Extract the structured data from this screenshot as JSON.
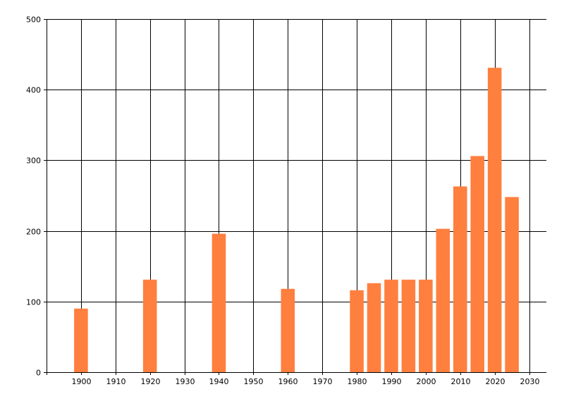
{
  "chart_data": {
    "type": "bar",
    "x": [
      1900,
      1920,
      1940,
      1960,
      1980,
      1985,
      1990,
      1995,
      2000,
      2005,
      2010,
      2015,
      2020,
      2025
    ],
    "values": [
      90,
      131,
      196,
      118,
      116,
      126,
      131,
      131,
      131,
      203,
      263,
      306,
      431,
      248
    ],
    "xlim": [
      1890,
      2035
    ],
    "ylim": [
      0,
      500
    ],
    "x_ticks": [
      "1900",
      "1910",
      "1920",
      "1930",
      "1940",
      "1950",
      "1960",
      "1970",
      "1980",
      "1990",
      "2000",
      "2010",
      "2020",
      "2030"
    ],
    "y_ticks": [
      "0",
      "100",
      "200",
      "300",
      "400",
      "500"
    ],
    "grid": true,
    "bar_color": "#ff7f3f",
    "grid_color": "#000000"
  }
}
